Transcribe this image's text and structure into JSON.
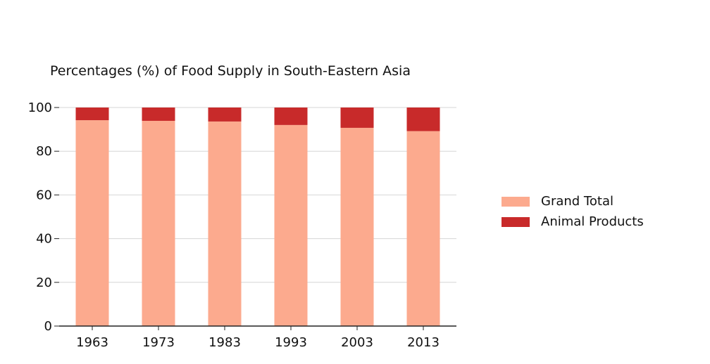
{
  "chart_data": {
    "type": "bar",
    "stacked": true,
    "title": "Percentages (%) of Food Supply in South-Eastern Asia",
    "xlabel": "",
    "ylabel": "",
    "categories": [
      "1963",
      "1973",
      "1983",
      "1993",
      "2003",
      "2013"
    ],
    "series": [
      {
        "name": "Grand Total",
        "color": "#fcaa8e",
        "values": [
          94.2,
          93.9,
          93.6,
          92.0,
          90.7,
          89.2
        ]
      },
      {
        "name": "Animal Products",
        "color": "#c82a2a",
        "values": [
          5.8,
          6.1,
          6.4,
          8.0,
          9.3,
          10.8
        ]
      }
    ],
    "ylim": [
      0,
      100
    ],
    "yticks": [
      0,
      20,
      40,
      60,
      80,
      100
    ],
    "grid": true,
    "legend_position": "right"
  }
}
